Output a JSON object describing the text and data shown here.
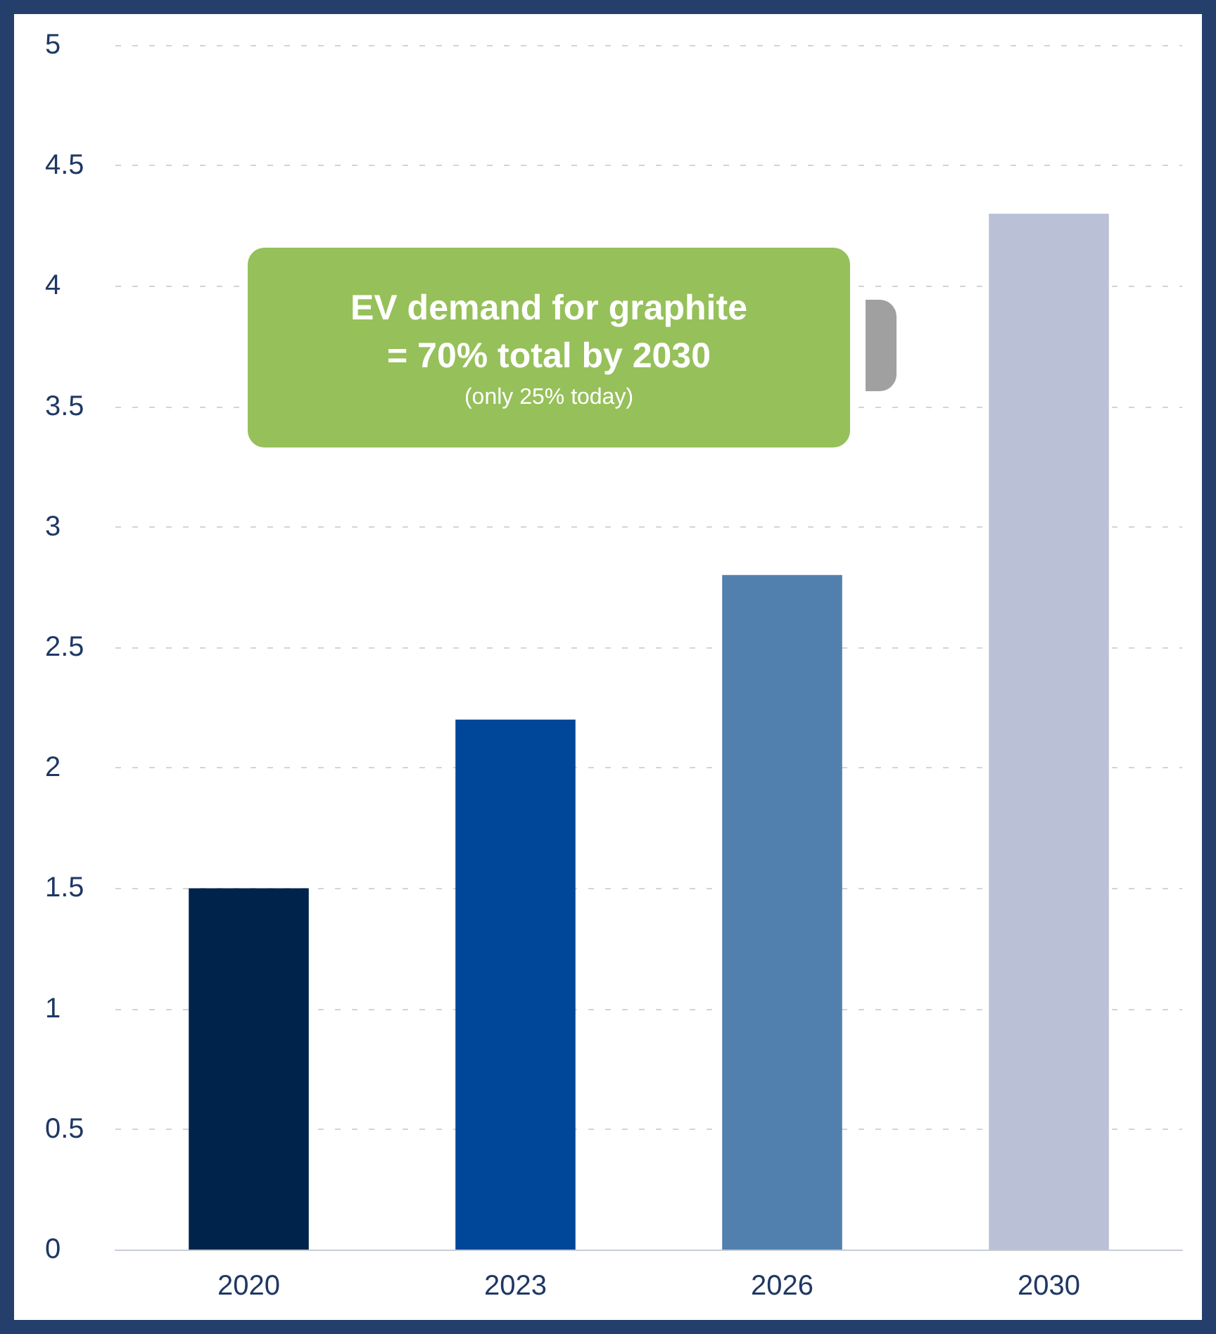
{
  "chart_data": {
    "type": "bar",
    "categories": [
      "2020",
      "2023",
      "2026",
      "2030"
    ],
    "values": [
      1.5,
      2.2,
      2.8,
      4.3
    ],
    "colors": [
      "#00234b",
      "#004699",
      "#5280ae",
      "#bac1d6"
    ],
    "ylim": [
      0,
      5
    ],
    "yticks": [
      0,
      0.5,
      1,
      1.5,
      2,
      2.5,
      3,
      3.5,
      4,
      4.5,
      5
    ],
    "grid": "y",
    "annotations": [
      "EV demand for graphite\n= 70% total by 2030",
      "(only 25% today)"
    ]
  }
}
